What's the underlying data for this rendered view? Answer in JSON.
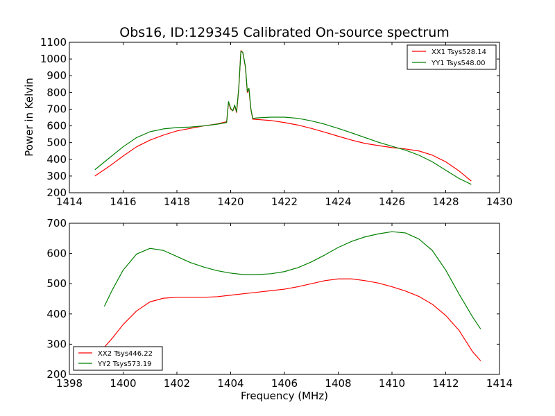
{
  "chart_data": [
    {
      "type": "line",
      "title": "Obs16, ID:129345 Calibrated On-source spectrum",
      "xlabel": "",
      "ylabel": "Power in Kelvin",
      "xlim": [
        1414,
        1430
      ],
      "ylim": [
        200,
        1100
      ],
      "xticks": [
        1414,
        1416,
        1418,
        1420,
        1422,
        1424,
        1426,
        1428,
        1430
      ],
      "yticks": [
        200,
        300,
        400,
        500,
        600,
        700,
        800,
        900,
        1000,
        1100
      ],
      "legend": "top-right",
      "grid": false,
      "series": [
        {
          "name": "XX1 Tsys528.14",
          "color": "#ff0000",
          "points": [
            [
              1414.95,
              300
            ],
            [
              1415.5,
              360
            ],
            [
              1416.0,
              420
            ],
            [
              1416.5,
              475
            ],
            [
              1417.0,
              515
            ],
            [
              1417.5,
              545
            ],
            [
              1418.0,
              570
            ],
            [
              1418.5,
              585
            ],
            [
              1419.0,
              600
            ],
            [
              1419.5,
              612
            ],
            [
              1419.85,
              625
            ],
            [
              1419.92,
              740
            ],
            [
              1420.0,
              700
            ],
            [
              1420.08,
              690
            ],
            [
              1420.15,
              720
            ],
            [
              1420.22,
              680
            ],
            [
              1420.3,
              820
            ],
            [
              1420.38,
              1050
            ],
            [
              1420.45,
              1040
            ],
            [
              1420.55,
              950
            ],
            [
              1420.62,
              800
            ],
            [
              1420.68,
              820
            ],
            [
              1420.75,
              700
            ],
            [
              1420.82,
              640
            ],
            [
              1421.0,
              638
            ],
            [
              1421.5,
              632
            ],
            [
              1422.0,
              620
            ],
            [
              1422.5,
              605
            ],
            [
              1423.0,
              585
            ],
            [
              1423.5,
              562
            ],
            [
              1424.0,
              538
            ],
            [
              1424.5,
              515
            ],
            [
              1425.0,
              495
            ],
            [
              1425.5,
              482
            ],
            [
              1426.0,
              470
            ],
            [
              1426.5,
              462
            ],
            [
              1427.0,
              450
            ],
            [
              1427.5,
              425
            ],
            [
              1428.0,
              385
            ],
            [
              1428.5,
              330
            ],
            [
              1428.95,
              270
            ]
          ]
        },
        {
          "name": "YY1 Tsys548.00",
          "color": "#008000",
          "points": [
            [
              1414.95,
              338
            ],
            [
              1415.5,
              410
            ],
            [
              1416.0,
              475
            ],
            [
              1416.5,
              530
            ],
            [
              1417.0,
              565
            ],
            [
              1417.5,
              582
            ],
            [
              1418.0,
              590
            ],
            [
              1418.5,
              593
            ],
            [
              1419.0,
              600
            ],
            [
              1419.5,
              610
            ],
            [
              1419.85,
              620
            ],
            [
              1419.92,
              745
            ],
            [
              1420.0,
              705
            ],
            [
              1420.08,
              690
            ],
            [
              1420.15,
              725
            ],
            [
              1420.22,
              685
            ],
            [
              1420.3,
              825
            ],
            [
              1420.38,
              1045
            ],
            [
              1420.45,
              1040
            ],
            [
              1420.55,
              955
            ],
            [
              1420.62,
              805
            ],
            [
              1420.68,
              825
            ],
            [
              1420.75,
              705
            ],
            [
              1420.82,
              645
            ],
            [
              1421.0,
              648
            ],
            [
              1421.5,
              652
            ],
            [
              1422.0,
              652
            ],
            [
              1422.5,
              645
            ],
            [
              1423.0,
              630
            ],
            [
              1423.5,
              610
            ],
            [
              1424.0,
              585
            ],
            [
              1424.5,
              558
            ],
            [
              1425.0,
              530
            ],
            [
              1425.5,
              502
            ],
            [
              1426.0,
              478
            ],
            [
              1426.5,
              455
            ],
            [
              1427.0,
              425
            ],
            [
              1427.5,
              385
            ],
            [
              1428.0,
              335
            ],
            [
              1428.5,
              285
            ],
            [
              1428.95,
              250
            ]
          ]
        }
      ]
    },
    {
      "type": "line",
      "title": "",
      "xlabel": "Frequency (MHz)",
      "ylabel": "",
      "xlim": [
        1398,
        1414
      ],
      "ylim": [
        200,
        700
      ],
      "xticks": [
        1398,
        1400,
        1402,
        1404,
        1406,
        1408,
        1410,
        1412,
        1414
      ],
      "yticks": [
        200,
        300,
        400,
        500,
        600,
        700
      ],
      "legend": "bottom-left",
      "grid": false,
      "series": [
        {
          "name": "XX2 Tsys446.22",
          "color": "#ff0000",
          "points": [
            [
              1399.3,
              290
            ],
            [
              1399.6,
              320
            ],
            [
              1400.0,
              365
            ],
            [
              1400.5,
              410
            ],
            [
              1401.0,
              440
            ],
            [
              1401.5,
              452
            ],
            [
              1402.0,
              455
            ],
            [
              1402.5,
              455
            ],
            [
              1403.0,
              455
            ],
            [
              1403.5,
              457
            ],
            [
              1404.0,
              462
            ],
            [
              1404.5,
              467
            ],
            [
              1405.0,
              472
            ],
            [
              1405.5,
              477
            ],
            [
              1406.0,
              482
            ],
            [
              1406.5,
              490
            ],
            [
              1407.0,
              500
            ],
            [
              1407.5,
              510
            ],
            [
              1408.0,
              516
            ],
            [
              1408.5,
              516
            ],
            [
              1409.0,
              510
            ],
            [
              1409.5,
              502
            ],
            [
              1410.0,
              490
            ],
            [
              1410.5,
              476
            ],
            [
              1411.0,
              458
            ],
            [
              1411.5,
              432
            ],
            [
              1412.0,
              395
            ],
            [
              1412.5,
              345
            ],
            [
              1413.0,
              275
            ],
            [
              1413.3,
              245
            ]
          ]
        },
        {
          "name": "YY2 Tsys573.19",
          "color": "#008000",
          "points": [
            [
              1399.3,
              425
            ],
            [
              1399.6,
              480
            ],
            [
              1400.0,
              545
            ],
            [
              1400.5,
              598
            ],
            [
              1401.0,
              617
            ],
            [
              1401.5,
              610
            ],
            [
              1402.0,
              590
            ],
            [
              1402.5,
              570
            ],
            [
              1403.0,
              555
            ],
            [
              1403.5,
              543
            ],
            [
              1404.0,
              535
            ],
            [
              1404.5,
              530
            ],
            [
              1405.0,
              530
            ],
            [
              1405.5,
              533
            ],
            [
              1406.0,
              540
            ],
            [
              1406.5,
              553
            ],
            [
              1407.0,
              572
            ],
            [
              1407.5,
              595
            ],
            [
              1408.0,
              620
            ],
            [
              1408.5,
              640
            ],
            [
              1409.0,
              655
            ],
            [
              1409.5,
              665
            ],
            [
              1410.0,
              672
            ],
            [
              1410.5,
              668
            ],
            [
              1411.0,
              648
            ],
            [
              1411.5,
              610
            ],
            [
              1412.0,
              545
            ],
            [
              1412.5,
              465
            ],
            [
              1413.0,
              390
            ],
            [
              1413.3,
              350
            ]
          ]
        }
      ]
    }
  ]
}
